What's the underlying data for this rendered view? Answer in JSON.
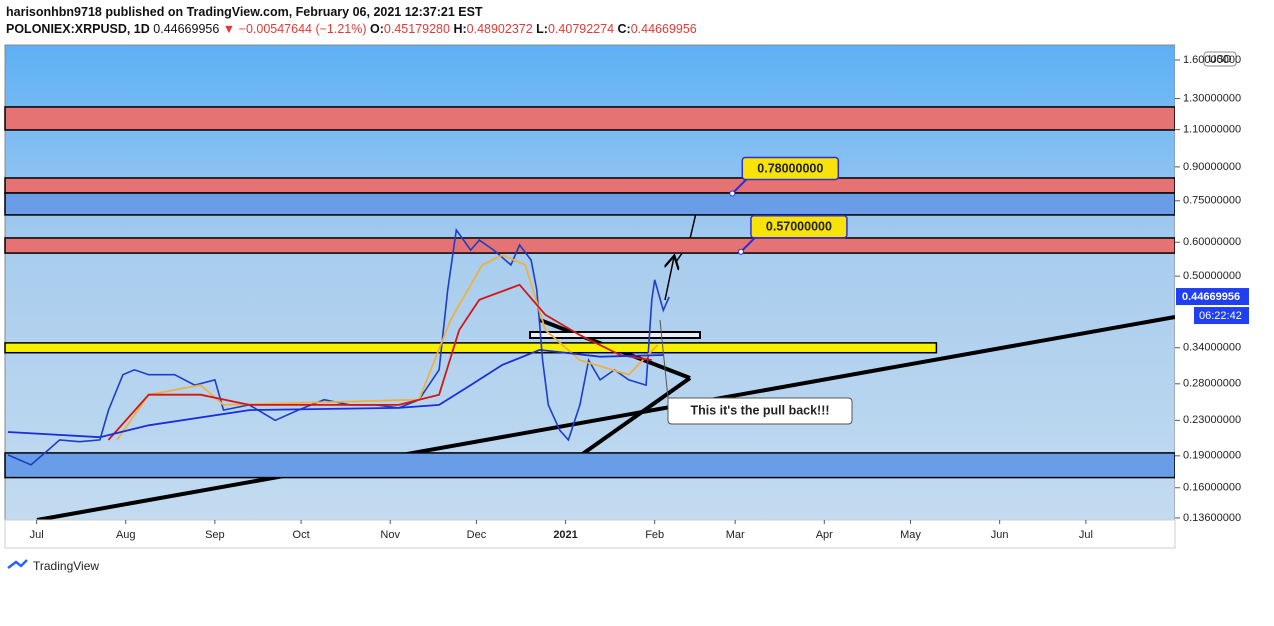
{
  "header": {
    "publisher": "harisonhbn9718 published on TradingView.com, February 06, 2021 12:37:21 EST",
    "symbol": "POLONIEX:XRPUSD, 1D",
    "last": "0.44669956",
    "change": "▼ −0.00547644 (−1.21%)",
    "open_label": "O:",
    "open": "0.45179280",
    "high_label": "H:",
    "high": "0.48902372",
    "low_label": "L:",
    "low": "0.40792274",
    "close_label": "C:",
    "close": "0.44669956"
  },
  "footer": {
    "brand": "TradingView"
  },
  "chart_data": {
    "type": "line",
    "log_scale": true,
    "currency": "USD",
    "xlim": [
      "2020-06-20",
      "2021-08-01"
    ],
    "xticks": [
      {
        "value": "2020-07-01",
        "label": "Jul"
      },
      {
        "value": "2020-08-01",
        "label": "Aug"
      },
      {
        "value": "2020-09-01",
        "label": "Sep"
      },
      {
        "value": "2020-10-01",
        "label": "Oct"
      },
      {
        "value": "2020-11-01",
        "label": "Nov"
      },
      {
        "value": "2020-12-01",
        "label": "Dec"
      },
      {
        "value": "2021-01-01",
        "label": "2021"
      },
      {
        "value": "2021-02-01",
        "label": "Feb"
      },
      {
        "value": "2021-03-01",
        "label": "Mar"
      },
      {
        "value": "2021-04-01",
        "label": "Apr"
      },
      {
        "value": "2021-05-01",
        "label": "May"
      },
      {
        "value": "2021-06-01",
        "label": "Jun"
      },
      {
        "value": "2021-07-01",
        "label": "Jul"
      }
    ],
    "ylim": [
      0.1345,
      1.735
    ],
    "yticks": [
      {
        "value": 1.6,
        "label": "1.60000000"
      },
      {
        "value": 1.3,
        "label": "1.30000000"
      },
      {
        "value": 1.1,
        "label": "1.10000000"
      },
      {
        "value": 0.9,
        "label": "0.90000000"
      },
      {
        "value": 0.75,
        "label": "0.75000000"
      },
      {
        "value": 0.6,
        "label": "0.60000000"
      },
      {
        "value": 0.5,
        "label": "0.50000000"
      },
      {
        "value": 0.34,
        "label": "0.34000000"
      },
      {
        "value": 0.28,
        "label": "0.28000000"
      },
      {
        "value": 0.23,
        "label": "0.23000000"
      },
      {
        "value": 0.19,
        "label": "0.19000000"
      },
      {
        "value": 0.16,
        "label": "0.16000000"
      },
      {
        "value": 0.136,
        "label": "0.13600000"
      }
    ],
    "series": [
      {
        "color": "#1e3ec8",
        "x": [
          "2020-06-21",
          "2020-06-29",
          "2020-07-05",
          "2020-07-09",
          "2020-07-16",
          "2020-07-23",
          "2020-07-26",
          "2020-07-31",
          "2020-08-04",
          "2020-08-09",
          "2020-08-18",
          "2020-08-25",
          "2020-09-01",
          "2020-09-04",
          "2020-09-13",
          "2020-09-22",
          "2020-09-30",
          "2020-10-09",
          "2020-10-18",
          "2020-10-27",
          "2020-11-04",
          "2020-11-11",
          "2020-11-18",
          "2020-11-21",
          "2020-11-24",
          "2020-11-29",
          "2020-12-02",
          "2020-12-07",
          "2020-12-13",
          "2020-12-16",
          "2020-12-20",
          "2020-12-22",
          "2020-12-24",
          "2020-12-26",
          "2020-12-30",
          "2021-01-02",
          "2021-01-06",
          "2021-01-09",
          "2021-01-13",
          "2021-01-18",
          "2021-01-23",
          "2021-01-29",
          "2021-01-31",
          "2021-02-01",
          "2021-02-04",
          "2021-02-06"
        ],
        "values": [
          0.191,
          0.181,
          0.196,
          0.207,
          0.205,
          0.207,
          0.243,
          0.294,
          0.302,
          0.294,
          0.294,
          0.278,
          0.286,
          0.243,
          0.25,
          0.23,
          0.243,
          0.257,
          0.25,
          0.25,
          0.246,
          0.257,
          0.302,
          0.464,
          0.641,
          0.575,
          0.607,
          0.575,
          0.531,
          0.591,
          0.545,
          0.464,
          0.318,
          0.25,
          0.218,
          0.207,
          0.25,
          0.318,
          0.286,
          0.302,
          0.286,
          0.278,
          0.44,
          0.49,
          0.416,
          0.4467
        ]
      },
      {
        "color": "#f0b040",
        "x": [
          "2020-07-29",
          "2020-08-09",
          "2020-08-27",
          "2020-09-04",
          "2020-11-11",
          "2020-11-22",
          "2020-12-03",
          "2020-12-10",
          "2020-12-18",
          "2020-12-25",
          "2021-01-06",
          "2021-01-23",
          "2021-02-02"
        ],
        "values": [
          0.207,
          0.264,
          0.278,
          0.25,
          0.257,
          0.395,
          0.531,
          0.56,
          0.531,
          0.374,
          0.318,
          0.294,
          0.345
        ]
      },
      {
        "color": "#d01818",
        "x": [
          "2020-07-26",
          "2020-08-09",
          "2020-08-27",
          "2020-09-13",
          "2020-09-30",
          "2020-11-04",
          "2020-11-18",
          "2020-11-25",
          "2020-12-02",
          "2020-12-16",
          "2020-12-25",
          "2021-01-06",
          "2021-01-20",
          "2021-01-31"
        ],
        "values": [
          0.207,
          0.264,
          0.264,
          0.25,
          0.25,
          0.25,
          0.264,
          0.374,
          0.44,
          0.477,
          0.406,
          0.364,
          0.327,
          0.318
        ]
      },
      {
        "color": "#1a2fd8",
        "x": [
          "2020-06-21",
          "2020-07-23",
          "2020-08-09",
          "2020-09-13",
          "2020-11-04",
          "2020-11-18",
          "2020-11-29",
          "2020-12-10",
          "2020-12-23",
          "2021-01-13",
          "2021-02-04"
        ],
        "values": [
          0.216,
          0.21,
          0.224,
          0.243,
          0.246,
          0.25,
          0.278,
          0.31,
          0.336,
          0.324,
          0.327
        ]
      }
    ],
    "zones": [
      {
        "low": 1.098,
        "high": 1.243,
        "color": "#e57373"
      },
      {
        "low": 0.782,
        "high": 0.848,
        "color": "#e57373"
      },
      {
        "low": 0.695,
        "high": 0.782,
        "color": "#6a9de8"
      },
      {
        "low": 0.566,
        "high": 0.614,
        "color": "#e57373"
      },
      {
        "low": 0.331,
        "high": 0.349,
        "color": "#f5f000",
        "end": "2021-05-10"
      },
      {
        "low": 0.169,
        "high": 0.193,
        "color": "#6a9de8"
      }
    ],
    "targets": [
      {
        "x": "2021-02-28",
        "value": 0.78,
        "label": "0.78000000"
      },
      {
        "x": "2021-03-03",
        "value": 0.57,
        "label": "0.57000000"
      }
    ],
    "last_price": 0.44669956,
    "countdown": "06:22:42",
    "annotation": "This it's the pull back!!!"
  }
}
